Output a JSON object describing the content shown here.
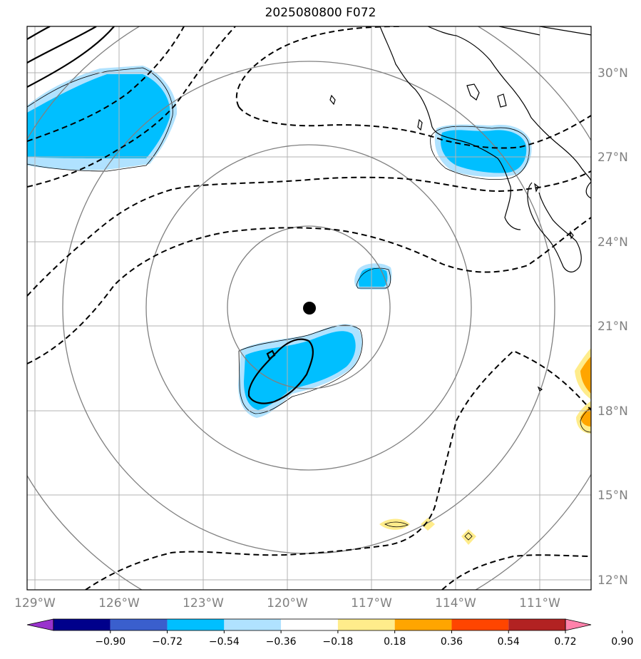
{
  "title": "2025080800 F072",
  "lat_labels": [
    "30°N",
    "27°N",
    "24°N",
    "21°N",
    "18°N",
    "15°N",
    "12°N"
  ],
  "lon_labels": [
    "129°W",
    "126°W",
    "123°W",
    "120°W",
    "117°W",
    "114°W",
    "111°W"
  ],
  "colorbar": {
    "ticks": [
      "−0.90",
      "−0.72",
      "−0.54",
      "−0.36",
      "−0.18",
      "0.18",
      "0.36",
      "0.54",
      "0.72",
      "0.90"
    ],
    "colors": [
      "#9932cc",
      "#00008b",
      "#3a5fcd",
      "#00bfff",
      "#b0e2ff",
      "#ffffff",
      "#ffec8b",
      "#ffa500",
      "#ff4500",
      "#b22222",
      "#ff82ab"
    ]
  },
  "map": {
    "center_marker": "storm-center-dot",
    "range_rings": 4
  }
}
